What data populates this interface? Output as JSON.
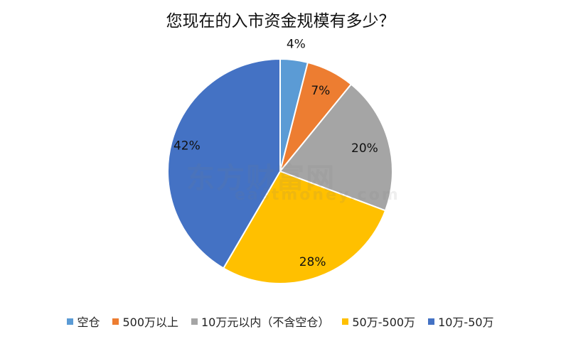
{
  "chart_data": {
    "type": "pie",
    "title": "您现在的入市资金规模有多少？",
    "categories": [
      "空仓",
      "500万以上",
      "10万元以内（不含空仓）",
      "50万-500万",
      "10万-50万"
    ],
    "values": [
      4,
      7,
      20,
      28,
      42
    ],
    "labels": [
      "4%",
      "7%",
      "20%",
      "28%",
      "42%"
    ],
    "colors": [
      "#5B9BD5",
      "#ED7D31",
      "#A5A5A5",
      "#FFC000",
      "#4472C4"
    ],
    "legend_position": "bottom",
    "start_angle": "12 o'clock, clockwise"
  },
  "watermark": {
    "brand": "东方财富网",
    "domain": "eastmoney.com"
  }
}
